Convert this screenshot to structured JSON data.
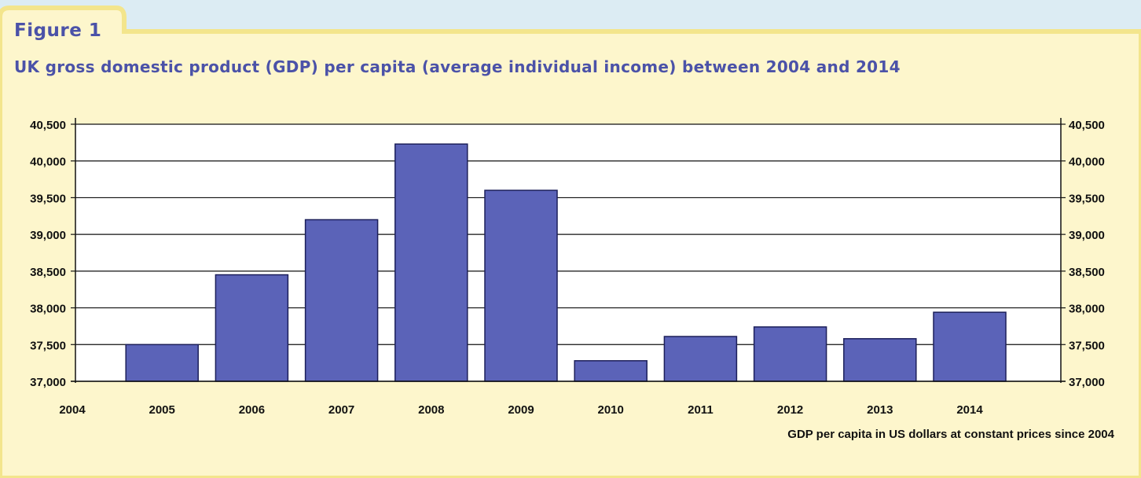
{
  "figure": {
    "label": "Figure 1",
    "title": "UK gross domestic product (GDP) per capita (average individual income) between 2004 and 2014",
    "note": "GDP per capita in US dollars at constant prices since 2004"
  },
  "colors": {
    "page_background": "#fdf6cc",
    "top_band": "#dcecf3",
    "border": "#f3e58c",
    "title_text": "#4b52a8",
    "bar_fill": "#5b63b8",
    "bar_stroke": "#1c1f5a"
  },
  "chart_data": {
    "type": "bar",
    "title": "UK gross domestic product (GDP) per capita (average individual income) between 2004 and 2014",
    "xlabel": "GDP per capita in US dollars at constant prices since 2004",
    "ylabel": "",
    "x_tick_labels": [
      "2004",
      "2005",
      "2006",
      "2007",
      "2008",
      "2009",
      "2010",
      "2011",
      "2012",
      "2013",
      "2014"
    ],
    "categories": [
      "2005",
      "2006",
      "2007",
      "2008",
      "2009",
      "2010",
      "2011",
      "2012",
      "2013",
      "2014"
    ],
    "values": [
      37500,
      38450,
      39200,
      40230,
      39600,
      37280,
      37610,
      37740,
      37580,
      37940
    ],
    "ylim": [
      37000,
      40500
    ],
    "y_ticks": [
      37000,
      37500,
      38000,
      38500,
      39000,
      39500,
      40000,
      40500
    ],
    "y_tick_labels": [
      "37,000",
      "37,500",
      "38,000",
      "38,500",
      "39,000",
      "39,500",
      "40,000",
      "40,500"
    ],
    "grid": true,
    "legend": "none",
    "axes": "left and right"
  }
}
